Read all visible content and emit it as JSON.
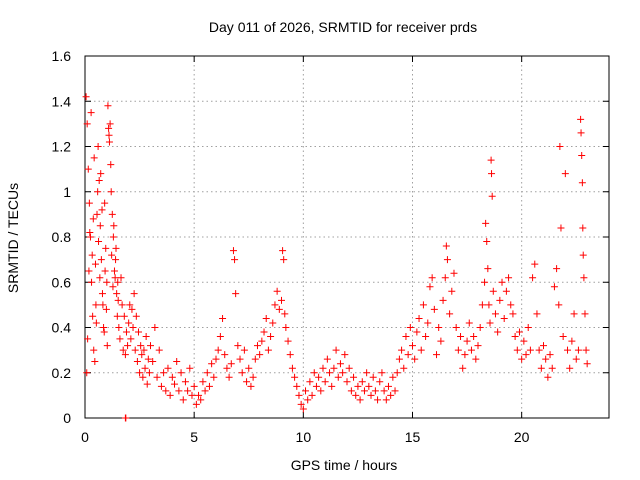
{
  "chart_data": {
    "type": "scatter",
    "title": "Day 011 of 2026, SRMTID for receiver prds",
    "xlabel": "GPS time / hours",
    "ylabel": "SRMTID / TECUs",
    "xlim": [
      0,
      24
    ],
    "ylim": [
      0,
      1.6
    ],
    "xticks": [
      0,
      5,
      10,
      15,
      20
    ],
    "xtick_labels": [
      "0",
      "5",
      "10",
      "15",
      "20"
    ],
    "yticks": [
      0,
      0.2,
      0.4,
      0.6,
      0.8,
      1.0,
      1.2,
      1.4,
      1.6
    ],
    "ytick_labels": [
      "0",
      "0.2",
      "0.4",
      "0.6",
      "0.8",
      "1",
      "1.2",
      "1.4",
      "1.6"
    ],
    "grid": true,
    "marker": "plus",
    "color": "#ff0000",
    "series": [
      {
        "name": "SRMTID",
        "points": [
          [
            0.05,
            1.42
          ],
          [
            0.1,
            1.3
          ],
          [
            0.15,
            1.1
          ],
          [
            0.2,
            0.95
          ],
          [
            0.25,
            0.8
          ],
          [
            0.3,
            0.6
          ],
          [
            0.35,
            0.45
          ],
          [
            0.4,
            0.3
          ],
          [
            0.45,
            0.25
          ],
          [
            0.5,
            0.5
          ],
          [
            0.55,
            0.9
          ],
          [
            0.6,
            1.2
          ],
          [
            0.65,
            1.05
          ],
          [
            0.7,
            0.85
          ],
          [
            0.75,
            0.7
          ],
          [
            0.8,
            0.55
          ],
          [
            0.85,
            0.4
          ],
          [
            0.9,
            0.95
          ],
          [
            0.95,
            0.75
          ],
          [
            1.0,
            0.6
          ],
          [
            1.05,
            1.38
          ],
          [
            1.1,
            1.25
          ],
          [
            1.15,
            1.3
          ],
          [
            1.2,
            1.0
          ],
          [
            1.25,
            0.9
          ],
          [
            1.3,
            0.8
          ],
          [
            1.35,
            0.65
          ],
          [
            1.4,
            0.7
          ],
          [
            1.45,
            0.55
          ],
          [
            1.5,
            0.6
          ],
          [
            0.08,
            0.2
          ],
          [
            0.12,
            0.35
          ],
          [
            0.18,
            0.65
          ],
          [
            0.22,
            0.82
          ],
          [
            0.28,
            1.35
          ],
          [
            0.33,
            0.72
          ],
          [
            0.38,
            0.88
          ],
          [
            0.42,
            1.15
          ],
          [
            0.48,
            0.68
          ],
          [
            0.52,
            0.42
          ],
          [
            0.58,
            1.0
          ],
          [
            0.62,
            0.78
          ],
          [
            0.68,
            0.62
          ],
          [
            0.72,
            1.08
          ],
          [
            0.78,
            0.92
          ],
          [
            0.82,
            0.5
          ],
          [
            0.88,
            0.38
          ],
          [
            0.92,
            0.65
          ],
          [
            0.98,
            0.48
          ],
          [
            1.02,
            0.32
          ],
          [
            1.08,
            1.28
          ],
          [
            1.12,
            1.22
          ],
          [
            1.18,
            1.12
          ],
          [
            1.22,
            0.72
          ],
          [
            1.28,
            0.58
          ],
          [
            1.32,
            0.85
          ],
          [
            1.38,
            0.62
          ],
          [
            1.42,
            0.75
          ],
          [
            1.48,
            0.45
          ],
          [
            1.52,
            0.52
          ],
          [
            1.55,
            0.4
          ],
          [
            1.6,
            0.35
          ],
          [
            1.65,
            0.62
          ],
          [
            1.7,
            0.5
          ],
          [
            1.75,
            0.3
          ],
          [
            1.8,
            0.45
          ],
          [
            1.85,
            0.28
          ],
          [
            1.9,
            0.38
          ],
          [
            1.95,
            0.32
          ],
          [
            2.0,
            0.42
          ],
          [
            2.05,
            0.5
          ],
          [
            2.1,
            0.35
          ],
          [
            2.15,
            0.48
          ],
          [
            2.2,
            0.4
          ],
          [
            2.25,
            0.55
          ],
          [
            2.3,
            0.3
          ],
          [
            2.35,
            0.45
          ],
          [
            2.4,
            0.25
          ],
          [
            2.45,
            0.38
          ],
          [
            2.5,
            0.2
          ],
          [
            2.55,
            0.32
          ],
          [
            2.6,
            0.28
          ],
          [
            2.65,
            0.18
          ],
          [
            2.7,
            0.3
          ],
          [
            2.75,
            0.22
          ],
          [
            2.8,
            0.36
          ],
          [
            2.85,
            0.15
          ],
          [
            2.9,
            0.26
          ],
          [
            2.95,
            0.2
          ],
          [
            3.0,
            0.32
          ],
          [
            3.1,
            0.25
          ],
          [
            3.2,
            0.4
          ],
          [
            3.3,
            0.18
          ],
          [
            3.4,
            0.3
          ],
          [
            3.5,
            0.14
          ],
          [
            3.6,
            0.2
          ],
          [
            3.7,
            0.12
          ],
          [
            3.8,
            0.22
          ],
          [
            3.9,
            0.1
          ],
          [
            4.0,
            0.18
          ],
          [
            4.1,
            0.15
          ],
          [
            4.2,
            0.25
          ],
          [
            4.3,
            0.12
          ],
          [
            4.4,
            0.2
          ],
          [
            4.5,
            0.08
          ],
          [
            4.6,
            0.16
          ],
          [
            4.7,
            0.12
          ],
          [
            4.8,
            0.22
          ],
          [
            4.9,
            0.1
          ],
          [
            5.0,
            0.14
          ],
          [
            5.1,
            0.06
          ],
          [
            5.2,
            0.1
          ],
          [
            5.3,
            0.08
          ],
          [
            5.4,
            0.16
          ],
          [
            5.5,
            0.12
          ],
          [
            5.6,
            0.2
          ],
          [
            5.7,
            0.14
          ],
          [
            5.8,
            0.24
          ],
          [
            5.9,
            0.18
          ],
          [
            6.0,
            0.26
          ],
          [
            6.1,
            0.3
          ],
          [
            6.2,
            0.36
          ],
          [
            6.3,
            0.44
          ],
          [
            6.4,
            0.28
          ],
          [
            6.5,
            0.22
          ],
          [
            6.6,
            0.18
          ],
          [
            6.7,
            0.24
          ],
          [
            6.8,
            0.74
          ],
          [
            6.85,
            0.7
          ],
          [
            6.9,
            0.55
          ],
          [
            7.0,
            0.32
          ],
          [
            7.1,
            0.26
          ],
          [
            7.2,
            0.2
          ],
          [
            7.3,
            0.3
          ],
          [
            7.4,
            0.16
          ],
          [
            7.5,
            0.22
          ],
          [
            7.6,
            0.14
          ],
          [
            7.7,
            0.18
          ],
          [
            7.8,
            0.26
          ],
          [
            7.9,
            0.32
          ],
          [
            8.0,
            0.28
          ],
          [
            8.1,
            0.34
          ],
          [
            8.2,
            0.38
          ],
          [
            8.3,
            0.44
          ],
          [
            8.4,
            0.3
          ],
          [
            8.5,
            0.36
          ],
          [
            8.6,
            0.42
          ],
          [
            8.7,
            0.5
          ],
          [
            8.8,
            0.56
          ],
          [
            8.9,
            0.48
          ],
          [
            9.0,
            0.52
          ],
          [
            9.05,
            0.74
          ],
          [
            9.1,
            0.7
          ],
          [
            9.15,
            0.46
          ],
          [
            9.2,
            0.4
          ],
          [
            9.3,
            0.34
          ],
          [
            9.4,
            0.28
          ],
          [
            9.5,
            0.22
          ],
          [
            9.6,
            0.18
          ],
          [
            9.7,
            0.14
          ],
          [
            9.8,
            0.1
          ],
          [
            9.9,
            0.06
          ],
          [
            10.0,
            0.04
          ],
          [
            10.1,
            0.12
          ],
          [
            10.2,
            0.08
          ],
          [
            10.3,
            0.16
          ],
          [
            10.4,
            0.1
          ],
          [
            10.5,
            0.2
          ],
          [
            10.6,
            0.14
          ],
          [
            10.7,
            0.18
          ],
          [
            10.8,
            0.12
          ],
          [
            10.9,
            0.22
          ],
          [
            11.0,
            0.16
          ],
          [
            11.1,
            0.26
          ],
          [
            11.2,
            0.2
          ],
          [
            11.3,
            0.14
          ],
          [
            11.4,
            0.22
          ],
          [
            11.5,
            0.3
          ],
          [
            11.6,
            0.18
          ],
          [
            11.7,
            0.24
          ],
          [
            11.8,
            0.2
          ],
          [
            11.9,
            0.28
          ],
          [
            12.0,
            0.16
          ],
          [
            12.1,
            0.22
          ],
          [
            12.2,
            0.12
          ],
          [
            12.3,
            0.18
          ],
          [
            12.4,
            0.1
          ],
          [
            12.5,
            0.14
          ],
          [
            12.6,
            0.08
          ],
          [
            12.7,
            0.16
          ],
          [
            12.8,
            0.12
          ],
          [
            12.9,
            0.2
          ],
          [
            13.0,
            0.14
          ],
          [
            13.1,
            0.1
          ],
          [
            13.2,
            0.18
          ],
          [
            13.3,
            0.12
          ],
          [
            13.4,
            0.08
          ],
          [
            13.5,
            0.16
          ],
          [
            13.6,
            0.2
          ],
          [
            13.7,
            0.12
          ],
          [
            13.8,
            0.08
          ],
          [
            13.9,
            0.14
          ],
          [
            14.0,
            0.1
          ],
          [
            14.1,
            0.18
          ],
          [
            14.2,
            0.12
          ],
          [
            14.3,
            0.2
          ],
          [
            14.4,
            0.26
          ],
          [
            14.5,
            0.3
          ],
          [
            14.6,
            0.22
          ],
          [
            14.7,
            0.36
          ],
          [
            14.8,
            0.28
          ],
          [
            14.9,
            0.4
          ],
          [
            15.0,
            0.32
          ],
          [
            15.1,
            0.26
          ],
          [
            15.2,
            0.38
          ],
          [
            15.3,
            0.44
          ],
          [
            15.4,
            0.3
          ],
          [
            15.5,
            0.5
          ],
          [
            15.6,
            0.36
          ],
          [
            15.7,
            0.42
          ],
          [
            15.8,
            0.58
          ],
          [
            15.9,
            0.62
          ],
          [
            16.0,
            0.48
          ],
          [
            16.1,
            0.28
          ],
          [
            16.2,
            0.4
          ],
          [
            16.3,
            0.34
          ],
          [
            16.4,
            0.52
          ],
          [
            16.5,
            0.62
          ],
          [
            16.55,
            0.76
          ],
          [
            16.6,
            0.7
          ],
          [
            16.7,
            0.46
          ],
          [
            16.8,
            0.56
          ],
          [
            16.9,
            0.64
          ],
          [
            17.0,
            0.4
          ],
          [
            17.1,
            0.3
          ],
          [
            17.2,
            0.36
          ],
          [
            17.3,
            0.22
          ],
          [
            17.4,
            0.28
          ],
          [
            17.5,
            0.34
          ],
          [
            17.6,
            0.42
          ],
          [
            17.7,
            0.3
          ],
          [
            17.8,
            0.36
          ],
          [
            17.9,
            0.26
          ],
          [
            18.0,
            0.32
          ],
          [
            18.1,
            0.4
          ],
          [
            18.2,
            0.5
          ],
          [
            18.3,
            0.6
          ],
          [
            18.35,
            0.86
          ],
          [
            18.4,
            0.78
          ],
          [
            18.45,
            0.66
          ],
          [
            18.5,
            0.5
          ],
          [
            18.55,
            0.42
          ],
          [
            18.6,
            1.14
          ],
          [
            18.62,
            1.08
          ],
          [
            18.65,
            0.98
          ],
          [
            18.7,
            0.56
          ],
          [
            18.8,
            0.46
          ],
          [
            18.9,
            0.38
          ],
          [
            19.0,
            0.52
          ],
          [
            19.1,
            0.6
          ],
          [
            19.2,
            0.44
          ],
          [
            19.3,
            0.56
          ],
          [
            19.4,
            0.62
          ],
          [
            19.5,
            0.5
          ],
          [
            19.6,
            0.46
          ],
          [
            19.7,
            0.36
          ],
          [
            19.8,
            0.3
          ],
          [
            19.9,
            0.38
          ],
          [
            20.0,
            0.26
          ],
          [
            20.1,
            0.34
          ],
          [
            20.2,
            0.28
          ],
          [
            20.3,
            0.4
          ],
          [
            20.4,
            0.3
          ],
          [
            20.5,
            0.62
          ],
          [
            20.6,
            0.68
          ],
          [
            20.7,
            0.46
          ],
          [
            20.8,
            0.3
          ],
          [
            20.9,
            0.22
          ],
          [
            21.0,
            0.32
          ],
          [
            21.1,
            0.26
          ],
          [
            21.2,
            0.18
          ],
          [
            21.3,
            0.28
          ],
          [
            21.4,
            0.22
          ],
          [
            21.5,
            0.58
          ],
          [
            21.6,
            0.66
          ],
          [
            21.7,
            0.5
          ],
          [
            21.75,
            1.2
          ],
          [
            21.8,
            0.84
          ],
          [
            21.9,
            0.36
          ],
          [
            22.0,
            1.08
          ],
          [
            22.1,
            0.3
          ],
          [
            22.2,
            0.22
          ],
          [
            22.3,
            0.34
          ],
          [
            22.4,
            0.46
          ],
          [
            22.5,
            0.26
          ],
          [
            22.6,
            0.3
          ],
          [
            22.7,
            1.32
          ],
          [
            22.72,
            1.26
          ],
          [
            22.75,
            1.16
          ],
          [
            22.78,
            1.04
          ],
          [
            22.8,
            0.84
          ],
          [
            22.82,
            0.72
          ],
          [
            22.85,
            0.62
          ],
          [
            22.9,
            0.46
          ],
          [
            22.95,
            0.3
          ],
          [
            23.0,
            0.24
          ],
          [
            1.85,
            0.0
          ],
          [
            1.87,
            0.0
          ]
        ]
      }
    ]
  }
}
